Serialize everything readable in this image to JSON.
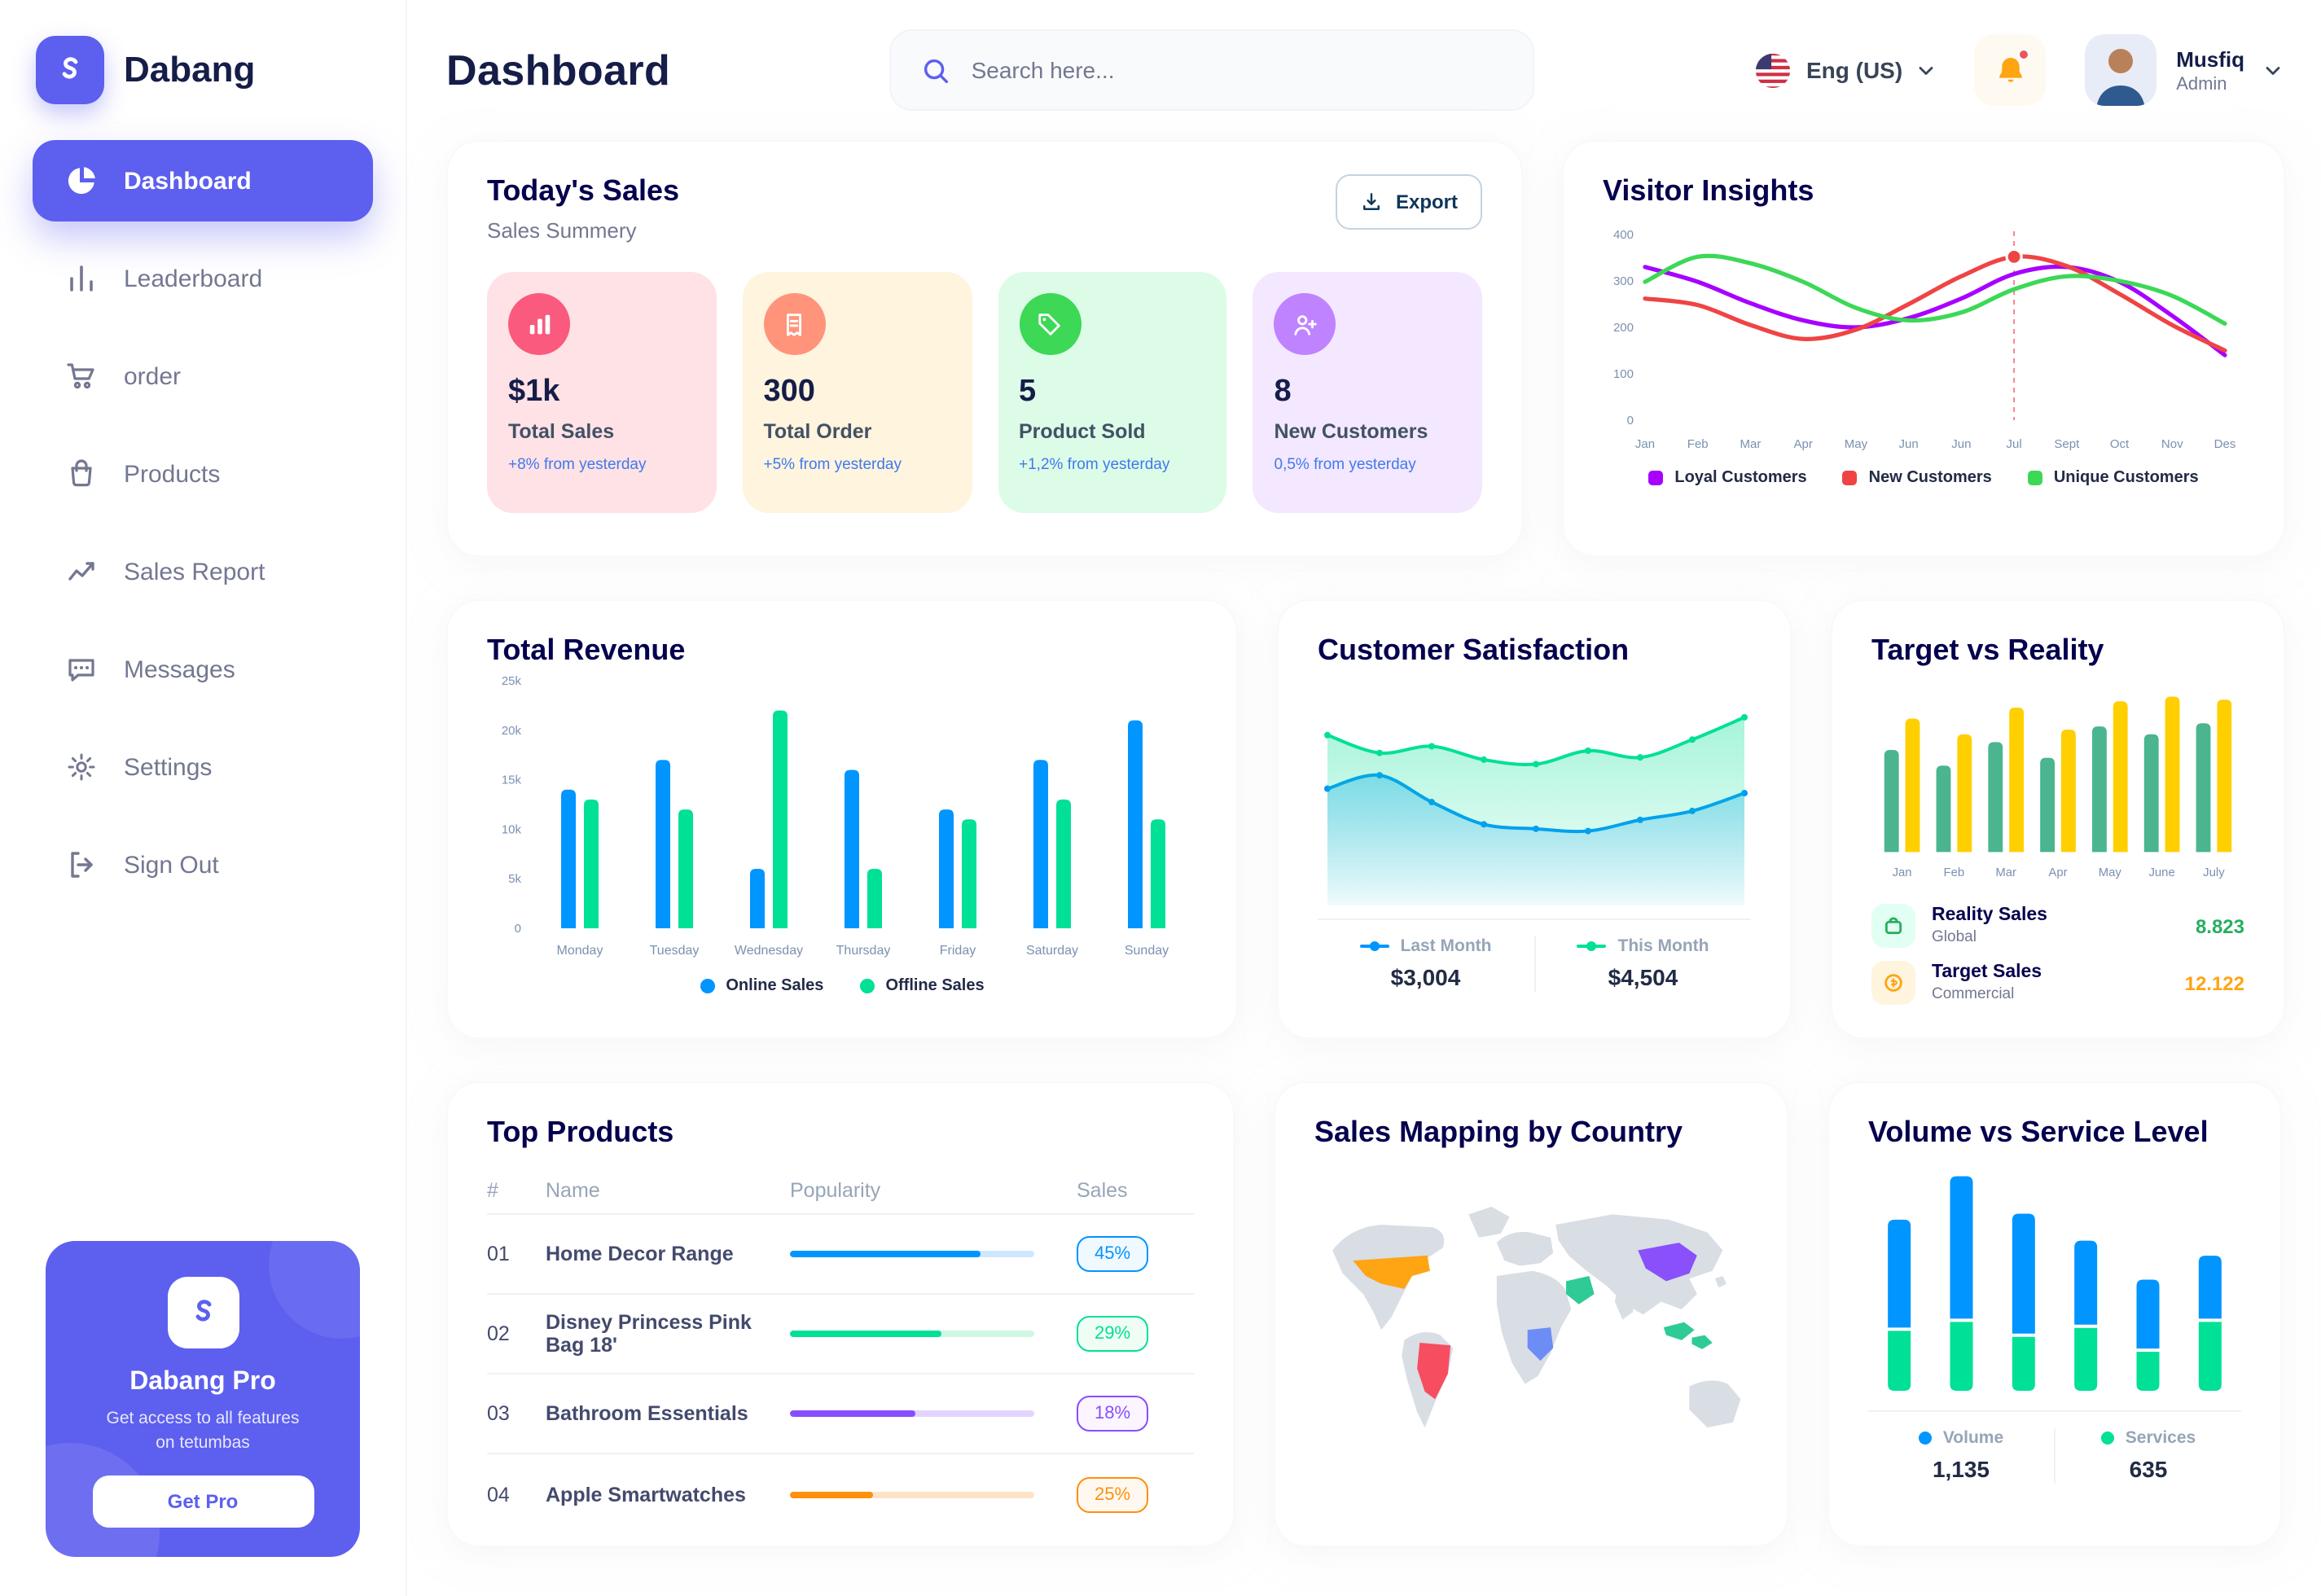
{
  "app": {
    "name": "Dabang"
  },
  "theme": {
    "primary": "#5D5FEF",
    "title_dark": "#05004E",
    "text_gray": "#737791",
    "axis_label": "#7B91B0"
  },
  "header": {
    "title": "Dashboard",
    "search_placeholder": "Search here...",
    "language": "Eng (US)",
    "user": {
      "name": "Musfiq",
      "role": "Admin"
    }
  },
  "sidebar": {
    "items": [
      {
        "label": "Dashboard",
        "active": true
      },
      {
        "label": "Leaderboard"
      },
      {
        "label": "order"
      },
      {
        "label": "Products"
      },
      {
        "label": "Sales Report"
      },
      {
        "label": "Messages"
      },
      {
        "label": "Settings"
      },
      {
        "label": "Sign Out"
      }
    ],
    "pro": {
      "title": "Dabang Pro",
      "subtitle": "Get access to all features on tetumbas",
      "button": "Get Pro"
    }
  },
  "today_sales": {
    "title": "Today's Sales",
    "subtitle": "Sales Summery",
    "export_label": "Export",
    "cards": [
      {
        "value": "$1k",
        "label": "Total Sales",
        "delta": "+8% from yesterday",
        "bg": "#FFE2E5",
        "icon_bg": "#FA5A7D",
        "icon": "chart-bar-icon"
      },
      {
        "value": "300",
        "label": "Total Order",
        "delta": "+5% from yesterday",
        "bg": "#FFF4DE",
        "icon_bg": "#FF947A",
        "icon": "receipt-icon"
      },
      {
        "value": "5",
        "label": "Product Sold",
        "delta": "+1,2% from yesterday",
        "bg": "#DCFCE7",
        "icon_bg": "#3CD856",
        "icon": "tag-icon"
      },
      {
        "value": "8",
        "label": "New Customers",
        "delta": "0,5% from yesterday",
        "bg": "#F3E8FF",
        "icon_bg": "#BF83FF",
        "icon": "user-plus-icon"
      }
    ]
  },
  "top_products": {
    "title": "Top Products",
    "headers": [
      "#",
      "Name",
      "Popularity",
      "Sales"
    ],
    "rows": [
      {
        "num": "01",
        "name": "Home Decor Range",
        "sales": "45%",
        "fill_percent": 78,
        "bar_color": "#0095FF",
        "track_color": "#CDE7FF",
        "badge_bg": "#F0F9FF"
      },
      {
        "num": "02",
        "name": "Disney Princess Pink Bag 18'",
        "sales": "29%",
        "fill_percent": 62,
        "bar_color": "#00E096",
        "track_color": "#CFF8E3",
        "badge_bg": "#F0FDF4"
      },
      {
        "num": "03",
        "name": "Bathroom Essentials",
        "sales": "18%",
        "fill_percent": 51,
        "bar_color": "#884DFF",
        "track_color": "#E3D4FF",
        "badge_bg": "#FBF5FF"
      },
      {
        "num": "04",
        "name": "Apple Smartwatches",
        "sales": "25%",
        "fill_percent": 34,
        "bar_color": "#FF8F0D",
        "track_color": "#FFE3C8",
        "badge_bg": "#FFF8F0"
      }
    ]
  },
  "sales_map": {
    "title": "Sales Mapping by Country",
    "base_color": "#D9DDE4",
    "regions": [
      {
        "id": "united-states",
        "color": "#FFA412"
      },
      {
        "id": "brazil",
        "color": "#F64E60"
      },
      {
        "id": "congo",
        "color": "#6D8DF6"
      },
      {
        "id": "saudi-arabia",
        "color": "#2FCB97"
      },
      {
        "id": "china",
        "color": "#8950FC"
      },
      {
        "id": "indonesia",
        "color": "#2FCB97"
      }
    ]
  },
  "chart_data": [
    {
      "id": "visitor-insights",
      "type": "line",
      "title": "Visitor Insights",
      "x": [
        "Jan",
        "Feb",
        "Mar",
        "Apr",
        "May",
        "Jun",
        "Jun",
        "Jul",
        "Sept",
        "Oct",
        "Nov",
        "Des"
      ],
      "ylim": [
        0,
        400
      ],
      "yticks": [
        0,
        100,
        200,
        300,
        400
      ],
      "grid": false,
      "legend_position": "bottom",
      "series": [
        {
          "name": "Loyal Customers",
          "color": "#A700FF",
          "values": [
            330,
            298,
            252,
            215,
            200,
            220,
            262,
            315,
            330,
            298,
            225,
            140
          ]
        },
        {
          "name": "New Customers",
          "color": "#EF4444",
          "values": [
            262,
            248,
            205,
            175,
            195,
            250,
            310,
            352,
            332,
            272,
            205,
            150
          ]
        },
        {
          "name": "Unique Customers",
          "color": "#3CD856",
          "values": [
            298,
            352,
            338,
            298,
            242,
            215,
            232,
            282,
            310,
            300,
            268,
            208
          ]
        }
      ],
      "marker": {
        "series": 1,
        "index": 7
      }
    },
    {
      "id": "total-revenue",
      "type": "bar",
      "title": "Total Revenue",
      "categories": [
        "Monday",
        "Tuesday",
        "Wednesday",
        "Thursday",
        "Friday",
        "Saturday",
        "Sunday"
      ],
      "ylim": [
        0,
        25
      ],
      "ytick_labels": [
        "0",
        "5k",
        "10k",
        "15k",
        "20k",
        "25k"
      ],
      "legend_position": "bottom",
      "series": [
        {
          "name": "Online Sales",
          "color": "#0095FF",
          "values": [
            14,
            17,
            6,
            16,
            12,
            17,
            21
          ]
        },
        {
          "name": "Offline Sales",
          "color": "#00E096",
          "values": [
            13,
            12,
            22,
            6,
            11,
            13,
            11
          ]
        }
      ]
    },
    {
      "id": "customer-satisfaction",
      "type": "area",
      "title": "Customer Satisfaction",
      "ylim": [
        1,
        5.6
      ],
      "legend_position": "bottom",
      "series": [
        {
          "name": "Last Month",
          "total": "$3,004",
          "color": "#0095FF",
          "values": [
            3.4,
            3.7,
            3.1,
            2.6,
            2.5,
            2.45,
            2.7,
            2.9,
            3.3
          ]
        },
        {
          "name": "This Month",
          "total": "$4,504",
          "color": "#00E096",
          "values": [
            4.6,
            4.2,
            4.35,
            4.05,
            3.95,
            4.25,
            4.1,
            4.5,
            5.0
          ]
        }
      ]
    },
    {
      "id": "target-vs-reality",
      "type": "bar",
      "title": "Target vs Reality",
      "categories": [
        "Jan",
        "Feb",
        "Mar",
        "Apr",
        "May",
        "June",
        "July"
      ],
      "ylim": [
        0,
        10.5
      ],
      "legend_position": "bottom",
      "series": [
        {
          "name": "Reality Sales",
          "subtitle": "Global",
          "total": "8.823",
          "color": "#4AB58E",
          "light": "#E2FFF3",
          "value_color": "#27AE60",
          "values": [
            6.5,
            5.5,
            7,
            6,
            8,
            7.5,
            8.2
          ]
        },
        {
          "name": "Target Sales",
          "subtitle": "Commercial",
          "total": "12.122",
          "color": "#FFCF00",
          "light": "#FFF4DE",
          "value_color": "#FFA412",
          "values": [
            8.5,
            7.5,
            9.2,
            7.8,
            9.6,
            9.9,
            9.7
          ]
        }
      ]
    },
    {
      "id": "volume-vs-service",
      "type": "stacked-bar",
      "title": "Volume vs Service Level",
      "ylim": [
        0,
        150
      ],
      "legend_position": "bottom",
      "series": [
        {
          "name": "Volume",
          "total": "1,135",
          "color": "#0095FF",
          "values": [
            72,
            95,
            80,
            56,
            46,
            42
          ]
        },
        {
          "name": "Services",
          "total": "635",
          "color": "#00E096",
          "values": [
            40,
            46,
            36,
            42,
            26,
            46
          ]
        }
      ]
    }
  ]
}
